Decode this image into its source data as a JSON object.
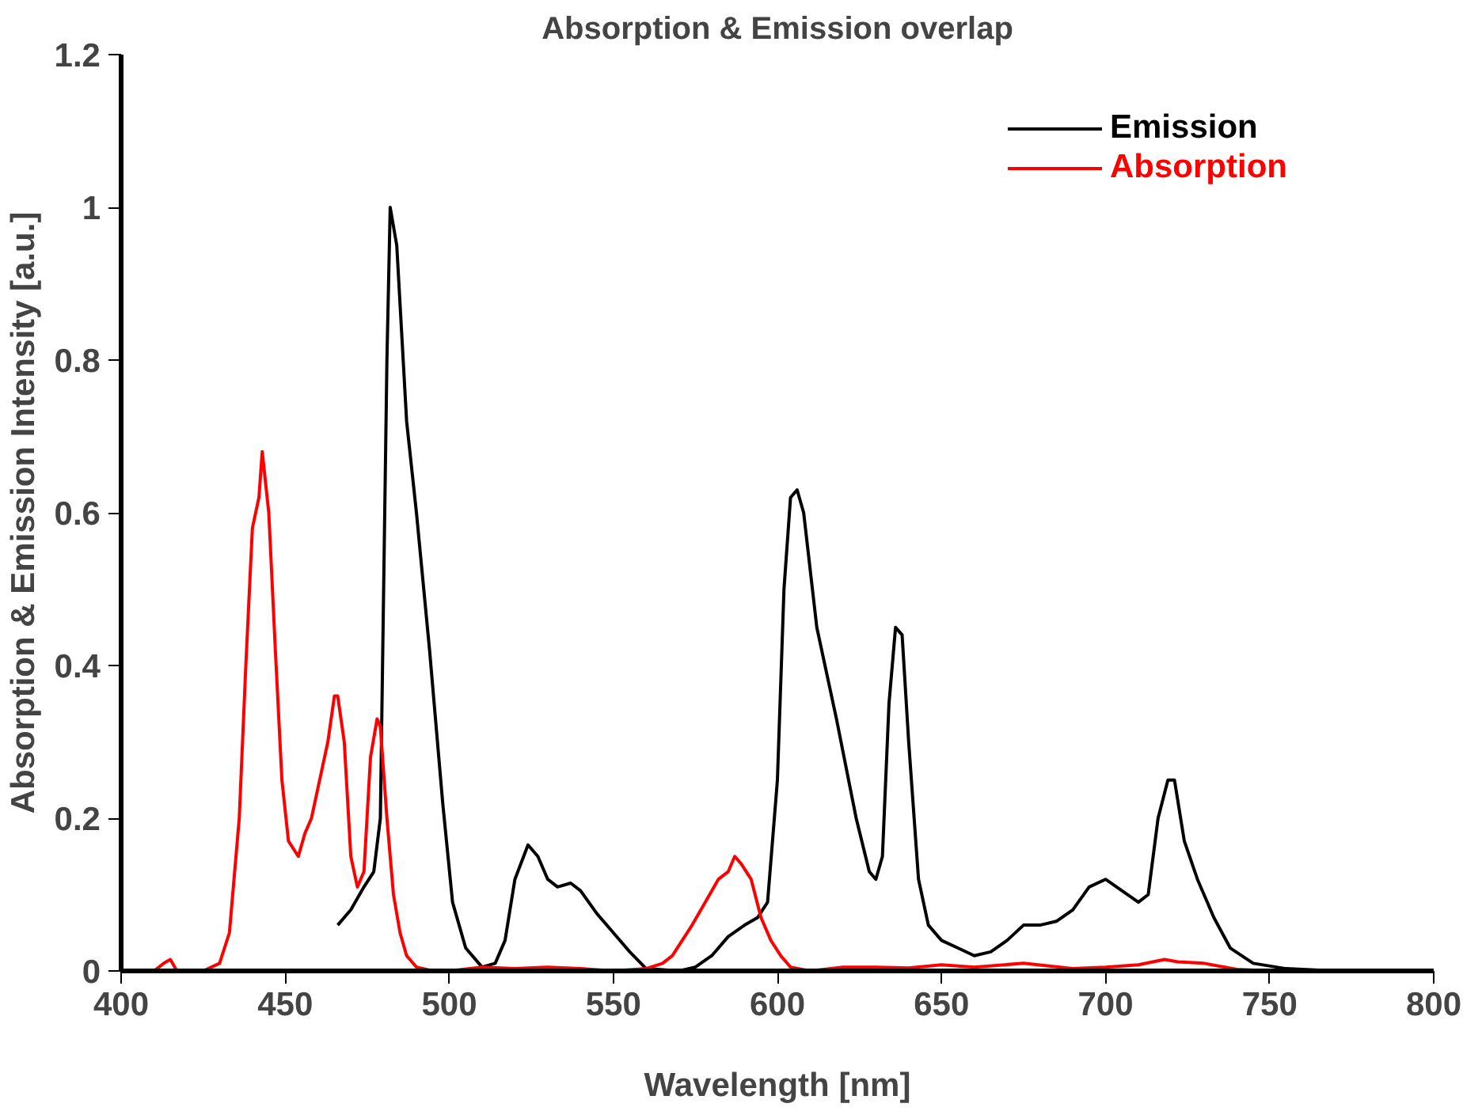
{
  "chart_data": {
    "type": "line",
    "title": "Absorption & Emission overlap",
    "xlabel": "Wavelength [nm]",
    "ylabel": "Absorption & Emission Intensity [a.u.]",
    "xlim": [
      400,
      800
    ],
    "xticks": [
      400,
      450,
      500,
      550,
      600,
      650,
      700,
      750,
      800
    ],
    "ylim": [
      0,
      1.2
    ],
    "yticks": [
      0,
      0.2,
      0.4,
      0.6,
      0.8,
      1,
      1.2
    ],
    "grid": false,
    "legend": "top right",
    "line_style": "solid",
    "series": [
      {
        "name": "Emission",
        "color": "#000000",
        "x": [
          466,
          470,
          474,
          477,
          479,
          481,
          482,
          484,
          487,
          490,
          494,
          498,
          501,
          505,
          510,
          514,
          517,
          520,
          524,
          527,
          530,
          533,
          537,
          540,
          545,
          550,
          555,
          560,
          570,
          575,
          580,
          585,
          590,
          594,
          597,
          600,
          602,
          604,
          606,
          608,
          612,
          618,
          624,
          628,
          630,
          632,
          634,
          636,
          638,
          640,
          643,
          646,
          650,
          655,
          660,
          665,
          670,
          675,
          680,
          685,
          690,
          695,
          700,
          705,
          710,
          713,
          716,
          719,
          721,
          724,
          728,
          733,
          738,
          745,
          755,
          770,
          800
        ],
        "values": [
          0.06,
          0.08,
          0.11,
          0.13,
          0.2,
          0.8,
          1.0,
          0.95,
          0.72,
          0.6,
          0.42,
          0.22,
          0.09,
          0.03,
          0.005,
          0.01,
          0.04,
          0.12,
          0.165,
          0.15,
          0.12,
          0.11,
          0.115,
          0.105,
          0.075,
          0.05,
          0.025,
          0.003,
          0.0,
          0.005,
          0.02,
          0.045,
          0.06,
          0.07,
          0.09,
          0.25,
          0.5,
          0.62,
          0.63,
          0.6,
          0.45,
          0.33,
          0.2,
          0.13,
          0.12,
          0.15,
          0.35,
          0.45,
          0.44,
          0.3,
          0.12,
          0.06,
          0.04,
          0.03,
          0.02,
          0.025,
          0.04,
          0.06,
          0.06,
          0.065,
          0.08,
          0.11,
          0.12,
          0.105,
          0.09,
          0.1,
          0.2,
          0.25,
          0.25,
          0.17,
          0.12,
          0.07,
          0.03,
          0.01,
          0.003,
          0.0,
          0.0
        ]
      },
      {
        "name": "Absorption",
        "color": "#ff0000",
        "x": [
          400,
          410,
          413,
          415,
          417,
          425,
          430,
          433,
          436,
          438,
          440,
          442,
          443,
          445,
          447,
          449,
          451,
          454,
          456,
          458,
          461,
          463,
          465,
          466,
          468,
          470,
          472,
          474,
          476,
          478,
          479,
          481,
          483,
          485,
          487,
          490,
          495,
          500,
          510,
          520,
          530,
          540,
          550,
          560,
          565,
          568,
          571,
          574,
          578,
          582,
          585,
          587,
          589,
          592,
          595,
          598,
          601,
          604,
          610,
          620,
          630,
          640,
          650,
          660,
          675,
          690,
          700,
          710,
          718,
          722,
          730,
          740,
          750,
          800
        ],
        "values": [
          0,
          0,
          0.01,
          0.015,
          0,
          0,
          0.01,
          0.05,
          0.2,
          0.4,
          0.58,
          0.62,
          0.68,
          0.6,
          0.42,
          0.25,
          0.17,
          0.15,
          0.18,
          0.2,
          0.26,
          0.3,
          0.36,
          0.36,
          0.3,
          0.15,
          0.11,
          0.13,
          0.28,
          0.33,
          0.32,
          0.2,
          0.1,
          0.05,
          0.02,
          0.005,
          0,
          0,
          0.005,
          0.003,
          0.005,
          0.003,
          0,
          0.003,
          0.01,
          0.02,
          0.04,
          0.06,
          0.09,
          0.12,
          0.13,
          0.15,
          0.14,
          0.12,
          0.07,
          0.04,
          0.02,
          0.005,
          0,
          0.005,
          0.005,
          0.004,
          0.008,
          0.005,
          0.01,
          0.003,
          0.005,
          0.008,
          0.015,
          0.012,
          0.01,
          0.002,
          0,
          0
        ]
      }
    ]
  }
}
